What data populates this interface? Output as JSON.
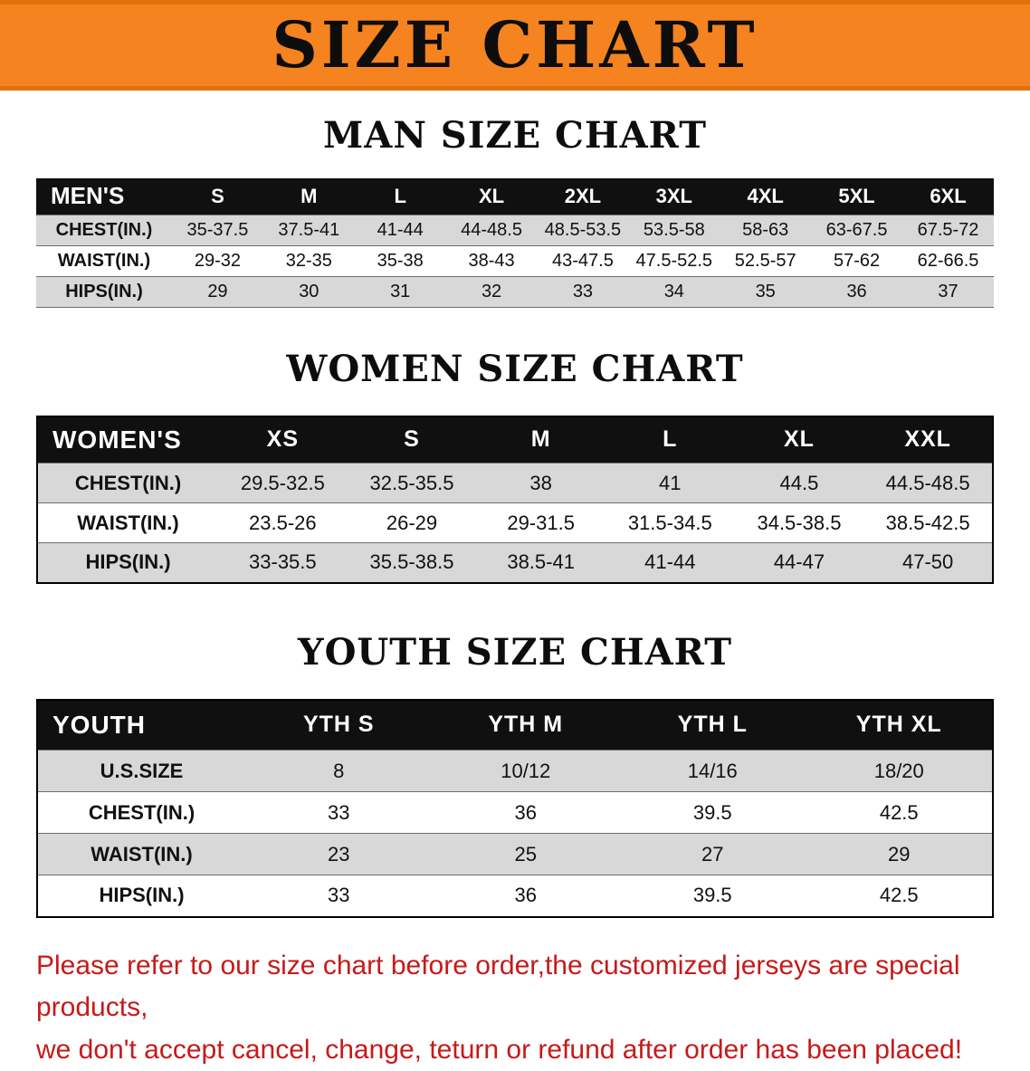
{
  "banner": {
    "title": "SIZE CHART",
    "bg_color": "#F5831F"
  },
  "sections": [
    {
      "heading": "MAN SIZE CHART",
      "table": {
        "header": [
          "MEN'S",
          "S",
          "M",
          "L",
          "XL",
          "2XL",
          "3XL",
          "4XL",
          "5XL",
          "6XL"
        ],
        "rows": [
          [
            "CHEST(IN.)",
            "35-37.5",
            "37.5-41",
            "41-44",
            "44-48.5",
            "48.5-53.5",
            "53.5-58",
            "58-63",
            "63-67.5",
            "67.5-72"
          ],
          [
            "WAIST(IN.)",
            "29-32",
            "32-35",
            "35-38",
            "38-43",
            "43-47.5",
            "47.5-52.5",
            "52.5-57",
            "57-62",
            "62-66.5"
          ],
          [
            "HIPS(IN.)",
            "29",
            "30",
            "31",
            "32",
            "33",
            "34",
            "35",
            "36",
            "37"
          ]
        ]
      }
    },
    {
      "heading": "WOMEN SIZE CHART",
      "table": {
        "header": [
          "WOMEN'S",
          "XS",
          "S",
          "M",
          "L",
          "XL",
          "XXL"
        ],
        "rows": [
          [
            "CHEST(IN.)",
            "29.5-32.5",
            "32.5-35.5",
            "38",
            "41",
            "44.5",
            "44.5-48.5"
          ],
          [
            "WAIST(IN.)",
            "23.5-26",
            "26-29",
            "29-31.5",
            "31.5-34.5",
            "34.5-38.5",
            "38.5-42.5"
          ],
          [
            "HIPS(IN.)",
            "33-35.5",
            "35.5-38.5",
            "38.5-41",
            "41-44",
            "44-47",
            "47-50"
          ]
        ]
      }
    },
    {
      "heading": "YOUTH SIZE CHART",
      "table": {
        "header": [
          "YOUTH",
          "YTH S",
          "YTH M",
          "YTH L",
          "YTH XL"
        ],
        "rows": [
          [
            "U.S.SIZE",
            "8",
            "10/12",
            "14/16",
            "18/20"
          ],
          [
            "CHEST(IN.)",
            "33",
            "36",
            "39.5",
            "42.5"
          ],
          [
            "WAIST(IN.)",
            "23",
            "25",
            "27",
            "29"
          ],
          [
            "HIPS(IN.)",
            "33",
            "36",
            "39.5",
            "42.5"
          ]
        ]
      }
    }
  ],
  "note": {
    "color": "#C61A1A",
    "line1": "Please refer to our size chart before order,the customized jerseys are special products,",
    "line2": "we don't accept cancel, change, teturn or refund after order has been placed!"
  }
}
